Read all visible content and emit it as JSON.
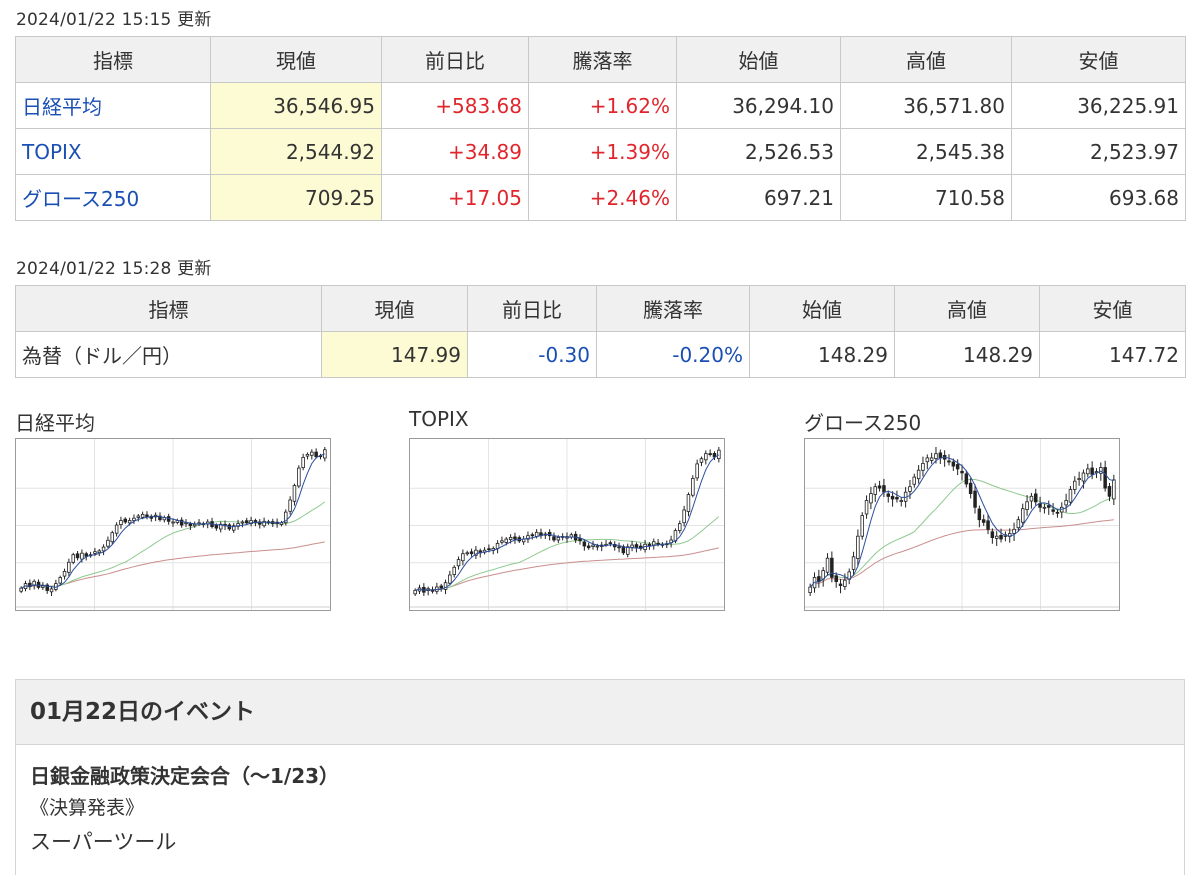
{
  "stock_update": "2024/01/22 15:15 更新",
  "stock_headers": [
    "指標",
    "現値",
    "前日比",
    "騰落率",
    "始値",
    "高値",
    "安値"
  ],
  "stocks": [
    {
      "name": "日経平均",
      "current": "36,546.95",
      "change": "+583.68",
      "rate": "+1.62%",
      "open": "36,294.10",
      "high": "36,571.80",
      "low": "36,225.91"
    },
    {
      "name": "TOPIX",
      "current": "2,544.92",
      "change": "+34.89",
      "rate": "+1.39%",
      "open": "2,526.53",
      "high": "2,545.38",
      "low": "2,523.97"
    },
    {
      "name": "グロース250",
      "current": "709.25",
      "change": "+17.05",
      "rate": "+2.46%",
      "open": "697.21",
      "high": "710.58",
      "low": "693.68"
    }
  ],
  "fx_update": "2024/01/22 15:28 更新",
  "fx_headers": [
    "指標",
    "現値",
    "前日比",
    "騰落率",
    "始値",
    "高値",
    "安値"
  ],
  "fx": {
    "name": "為替（ドル／円）",
    "current": "147.99",
    "change": "-0.30",
    "rate": "-0.20%",
    "open": "148.29",
    "high": "148.29",
    "low": "147.72"
  },
  "colors": {
    "up": "#e0262c",
    "down": "#1a4fb4",
    "highlight": "#fdfbd3",
    "header_bg": "#f0f0f0"
  },
  "charts": [
    {
      "title": "日経平均",
      "closes": [
        30.0,
        30.6,
        30.2,
        30.9,
        30.1,
        30.3,
        29.7,
        29.9,
        30.6,
        31.4,
        32.2,
        33.4,
        34.4,
        34.0,
        34.6,
        34.2,
        34.4,
        34.8,
        34.9,
        35.4,
        36.3,
        37.3,
        38.3,
        38.9,
        38.7,
        38.9,
        39.2,
        39.5,
        39.7,
        39.4,
        39.2,
        39.6,
        39.0,
        39.3,
        38.8,
        38.7,
        38.9,
        38.3,
        38.6,
        38.2,
        38.4,
        38.6,
        38.5,
        38.7,
        38.1,
        37.9,
        38.4,
        38.2,
        37.8,
        38.2,
        38.5,
        38.7,
        38.6,
        38.9,
        38.6,
        38.4,
        38.8,
        38.7,
        38.5,
        38.5,
        38.6,
        40.0,
        41.6,
        43.5,
        45.8,
        47.2,
        47.6,
        47.9,
        47.3,
        47.3,
        48.2
      ]
    },
    {
      "title": "TOPIX",
      "closes": [
        30.0,
        30.3,
        29.8,
        30.2,
        29.9,
        30.4,
        30.3,
        30.9,
        31.8,
        32.7,
        33.6,
        34.3,
        34.4,
        34.3,
        34.7,
        34.4,
        34.7,
        34.8,
        34.9,
        35.5,
        35.8,
        36.0,
        36.2,
        36.0,
        35.8,
        36.0,
        36.4,
        36.5,
        36.8,
        36.4,
        36.6,
        36.4,
        35.9,
        36.2,
        36.3,
        36.3,
        36.5,
        35.9,
        35.8,
        35.2,
        35.0,
        35.3,
        35.2,
        35.3,
        35.4,
        35.5,
        35.1,
        35.0,
        34.4,
        35.1,
        35.3,
        35.0,
        34.9,
        35.4,
        35.2,
        35.7,
        35.4,
        35.4,
        35.4,
        35.9,
        37.0,
        37.8,
        39.4,
        41.2,
        43.1,
        44.8,
        45.4,
        46.0,
        45.9,
        45.6,
        46.4
      ]
    },
    {
      "title": "グロース250",
      "closes": [
        30.0,
        30.7,
        30.4,
        31.2,
        32.1,
        30.7,
        30.4,
        30.1,
        30.5,
        31.1,
        32.2,
        33.7,
        35.2,
        36.3,
        36.8,
        37.3,
        37.2,
        36.9,
        36.6,
        36.4,
        36.4,
        36.3,
        36.9,
        37.3,
        38.0,
        38.5,
        39.0,
        39.4,
        39.4,
        39.7,
        39.4,
        39.3,
        39.1,
        38.8,
        38.6,
        38.3,
        37.5,
        36.8,
        35.8,
        34.9,
        34.7,
        34.2,
        33.6,
        33.7,
        33.5,
        33.8,
        33.9,
        34.2,
        34.9,
        35.7,
        36.2,
        36.6,
        36.2,
        35.8,
        35.8,
        35.8,
        35.5,
        35.4,
        35.8,
        36.3,
        37.1,
        37.7,
        37.9,
        38.3,
        38.6,
        38.2,
        38.4,
        38.7,
        37.2,
        36.6,
        37.8
      ]
    }
  ],
  "events": {
    "header": "01月22日のイベント",
    "line1": "日銀金融政策決定会合（～1/23）",
    "line2": "《決算発表》",
    "line3": "スーパーツール"
  }
}
